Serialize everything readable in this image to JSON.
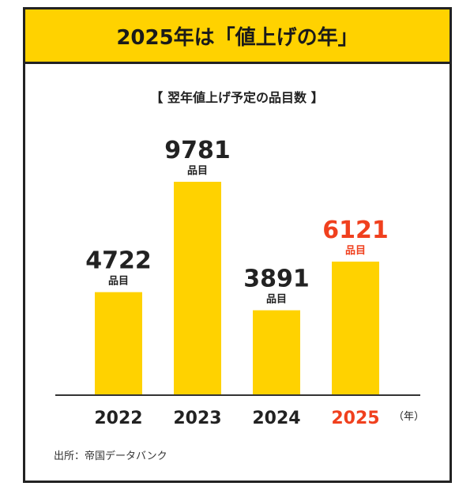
{
  "banner": {
    "title": "2025年は「値上げの年」"
  },
  "chart_title": "【 翌年値上げ予定の品目数 】",
  "chart_data": {
    "type": "bar",
    "categories": [
      "2022",
      "2023",
      "2024",
      "2025"
    ],
    "values": [
      4722,
      9781,
      3891,
      6121
    ],
    "value_labels": [
      "4722",
      "9781",
      "3891",
      "6121"
    ],
    "unit": "品目",
    "x_unit": "（年）",
    "highlight_category": "2025",
    "ylim": [
      0,
      10000
    ],
    "grid": false,
    "title": "【 翌年値上げ予定の品目数 】",
    "xlabel": "",
    "ylabel": ""
  },
  "colors": {
    "bar": "#FFD200",
    "highlight_text": "#F0401E",
    "text": "#222222",
    "banner": "#FFD200"
  },
  "source": "出所：帝国データバンク"
}
